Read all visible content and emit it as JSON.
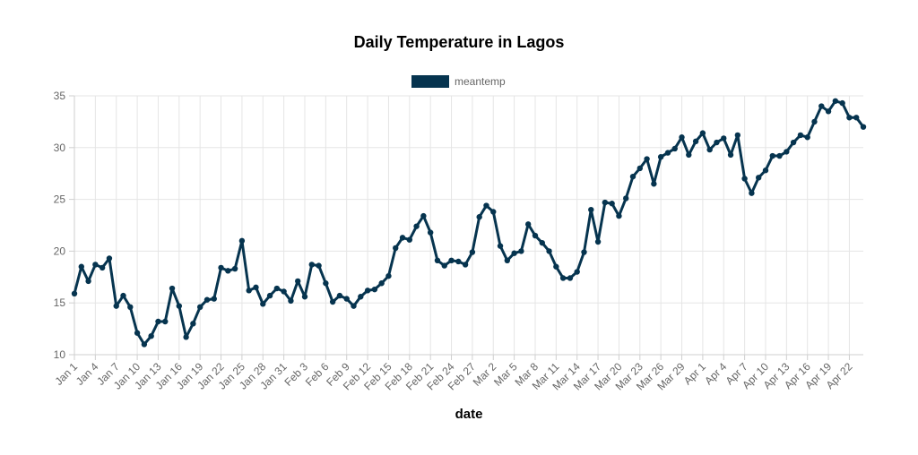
{
  "chart_data": {
    "type": "line",
    "title": "Daily Temperature in Lagos",
    "xlabel": "date",
    "ylabel": "",
    "ylim": [
      10,
      35
    ],
    "yticks": [
      10,
      15,
      20,
      25,
      30,
      35
    ],
    "grid": true,
    "legend_position": "top",
    "x_start": "Jan 1",
    "x_tick_labels": [
      "Jan 1",
      "Jan 4",
      "Jan 7",
      "Jan 10",
      "Jan 13",
      "Jan 16",
      "Jan 19",
      "Jan 22",
      "Jan 25",
      "Jan 28",
      "Jan 31",
      "Feb 3",
      "Feb 6",
      "Feb 9",
      "Feb 12",
      "Feb 15",
      "Feb 18",
      "Feb 21",
      "Feb 24",
      "Feb 27",
      "Mar 2",
      "Mar 5",
      "Mar 8",
      "Mar 11",
      "Mar 14",
      "Mar 17",
      "Mar 20",
      "Mar 23",
      "Mar 26",
      "Mar 29",
      "Apr 1",
      "Apr 4",
      "Apr 7",
      "Apr 10",
      "Apr 13",
      "Apr 16",
      "Apr 19",
      "Apr 22"
    ],
    "series": [
      {
        "name": "meantemp",
        "color": "#06344f",
        "values": [
          15.9,
          18.5,
          17.1,
          18.7,
          18.4,
          19.3,
          14.7,
          15.7,
          14.6,
          12.1,
          11.0,
          11.8,
          13.2,
          13.2,
          16.4,
          14.7,
          11.7,
          13.0,
          14.6,
          15.3,
          15.4,
          18.4,
          18.1,
          18.3,
          21.0,
          16.2,
          16.5,
          14.9,
          15.7,
          16.4,
          16.1,
          15.2,
          17.1,
          15.6,
          18.7,
          18.6,
          16.9,
          15.1,
          15.7,
          15.4,
          14.7,
          15.6,
          16.2,
          16.3,
          16.9,
          17.6,
          20.3,
          21.3,
          21.1,
          22.4,
          23.4,
          21.8,
          19.1,
          18.6,
          19.1,
          19.0,
          18.7,
          19.9,
          23.3,
          24.4,
          23.8,
          20.5,
          19.1,
          19.8,
          20.0,
          22.6,
          21.5,
          20.8,
          20.0,
          18.5,
          17.4,
          17.4,
          18.0,
          19.9,
          24.0,
          20.9,
          24.7,
          24.6,
          23.4,
          25.1,
          27.2,
          28.0,
          28.9,
          26.5,
          29.1,
          29.5,
          29.9,
          31.0,
          29.3,
          30.6,
          31.4,
          29.8,
          30.5,
          30.9,
          29.3,
          31.2,
          27.0,
          25.6,
          27.1,
          27.8,
          29.2,
          29.2,
          29.6,
          30.5,
          31.2,
          31.0,
          32.5,
          34.0,
          33.5,
          34.5,
          34.3,
          32.9,
          32.9,
          32.0
        ]
      }
    ]
  }
}
